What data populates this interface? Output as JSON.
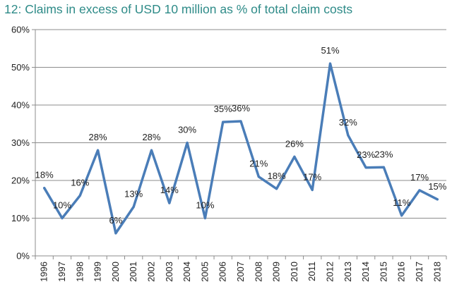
{
  "title": "12: Claims in excess of USD 10 million as % of total claim costs",
  "chart_data": {
    "type": "line",
    "title": "12: Claims in excess of USD 10 million as % of total claim costs",
    "xlabel": "",
    "ylabel": "",
    "x": [
      "1996",
      "1997",
      "1998",
      "1999",
      "2000",
      "2001",
      "2002",
      "2003",
      "2004",
      "2005",
      "2006",
      "2007",
      "2008",
      "2009",
      "2010",
      "2011",
      "2012",
      "2013",
      "2014",
      "2015",
      "2016",
      "2017",
      "2018"
    ],
    "series": [
      {
        "values": [
          18,
          10,
          16,
          28,
          6,
          13,
          28,
          14,
          30,
          10,
          35.5,
          35.7,
          21,
          17.8,
          26.3,
          17.5,
          51,
          32,
          23.4,
          23.5,
          10.7,
          17.4,
          15
        ],
        "labels": [
          "18%",
          "10%",
          "16%",
          "28%",
          "6%",
          "13%",
          "28%",
          "14%",
          "30%",
          "10%",
          "35%",
          "36%",
          "21%",
          "18%",
          "26%",
          "17%",
          "51%",
          "32%",
          "23%",
          "23%",
          "11%",
          "17%",
          "15%"
        ],
        "color": "#4a7db8"
      }
    ],
    "yticks": [
      "0%",
      "10%",
      "20%",
      "30%",
      "40%",
      "50%",
      "60%"
    ],
    "ylim": [
      0,
      60
    ],
    "grid": true,
    "grid_color": "#8c8c8c",
    "title_color": "#2e8b88"
  }
}
